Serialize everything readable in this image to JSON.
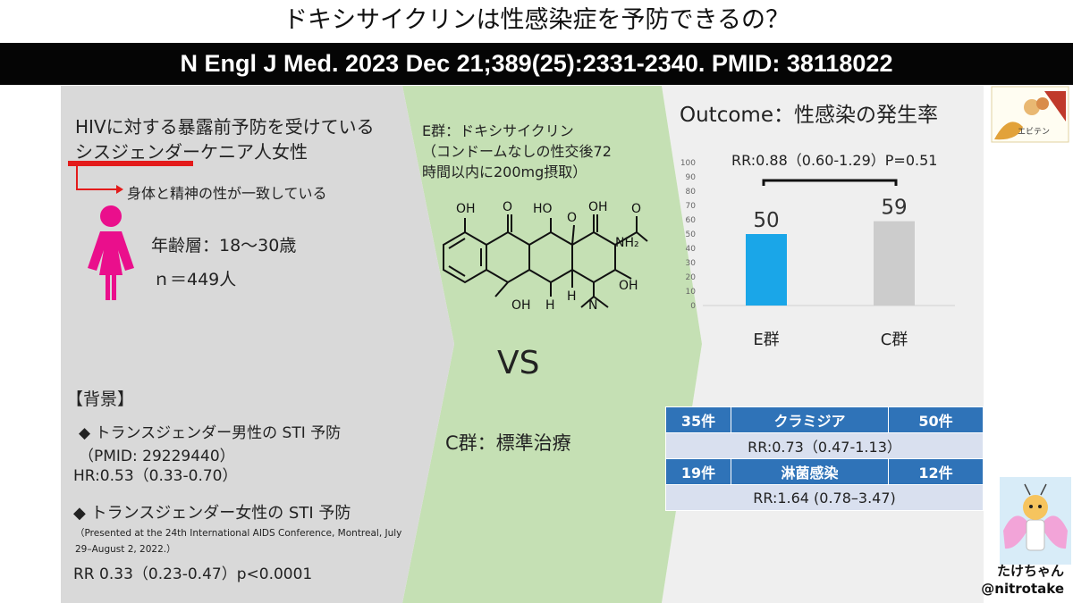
{
  "title": "ドキシサイクリンは性感染症を予防できるの？",
  "citation": "N Engl J Med. 2023 Dec 21;389(25):2331-2340. PMID: 38118022",
  "population": {
    "line1": "HIVに対する暴露前予防を受けている",
    "line2": "シスジェンダーケニア人女性",
    "note": "身体と精神の性が一致している",
    "age": "年齢層：18〜30歳",
    "n": "ｎ＝449人"
  },
  "background": {
    "heading": "【背景】",
    "item1": {
      "title": "◆ トランスジェンダー男性の STI 予防",
      "ref": "（PMID: 29229440）",
      "result": "HR:0.53（0.33-0.70）"
    },
    "item2": {
      "title": "◆ トランスジェンダー女性の STI 予防",
      "ref": "（Presented at the 24th International AIDS Conference, Montreal, July 29–August 2, 2022.）",
      "result": "RR 0.33（0.23-0.47）p<0.0001"
    }
  },
  "intervention": {
    "e_group": "E群：ドキシサイクリン\n（コンドームなしの性交後72\n時間以内に200mg摂取）",
    "vs": "VS",
    "c_group": "C群：標準治療",
    "molecule_labels": [
      "OH",
      "O",
      "HO",
      "O",
      "OH",
      "O",
      "NH₂",
      "OH",
      "H",
      "H",
      "OH",
      "N"
    ]
  },
  "outcome": {
    "heading": "Outcome：性感染の発生率",
    "rr": "RR:0.88（0.60-1.29）P=0.51"
  },
  "chart_data": {
    "type": "bar",
    "categories": [
      "E群",
      "C群"
    ],
    "values": [
      50,
      59
    ],
    "ylim": [
      0,
      100
    ],
    "yticks": [
      0,
      10,
      20,
      30,
      40,
      50,
      60,
      70,
      80,
      90,
      100
    ],
    "colors": [
      "#1aa6e8",
      "#cccccc"
    ],
    "grid": false,
    "title": "",
    "xlabel": "",
    "ylabel": ""
  },
  "table": {
    "row1": [
      "35件",
      "クラミジア",
      "50件"
    ],
    "row1_rr": "RR:0.73（0.47-1.13）",
    "row2": [
      "19件",
      "淋菌感染",
      "12件"
    ],
    "row2_rr": "RR:1.64 (0.78–3.47)"
  },
  "logo_text": "エビテン",
  "credit": {
    "name": "たけちゃん",
    "handle": "@nitrotake"
  },
  "colors": {
    "panel_gray": "#d9d9d9",
    "panel_green": "#c5e0b4",
    "panel_light": "#efefef",
    "underline": "#e31b1b",
    "figure_pink": "#ea0f8c",
    "table_blue": "#2f73b8",
    "table_light": "#d9e0ef"
  }
}
